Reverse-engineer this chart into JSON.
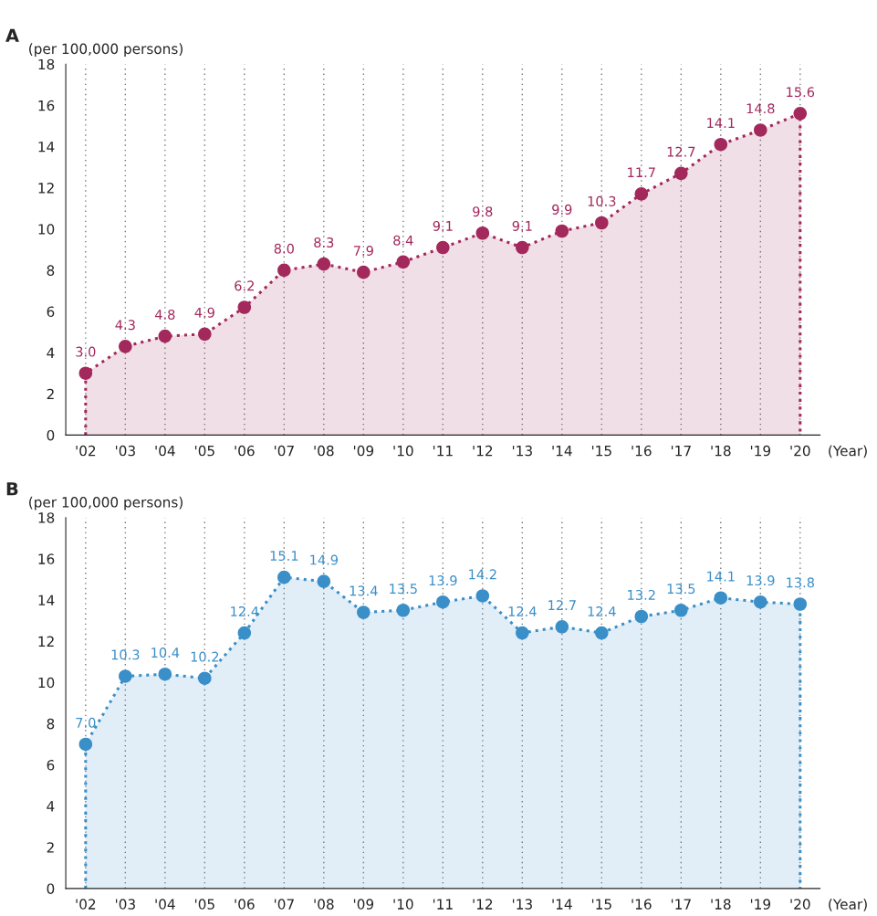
{
  "chart_data": [
    {
      "type": "area",
      "title": "A",
      "ylabel": "(per 100,000 persons)",
      "xlabel": "(Year)",
      "categories": [
        "'02",
        "'03",
        "'04",
        "'05",
        "'06",
        "'07",
        "'08",
        "'09",
        "'10",
        "'11",
        "'12",
        "'13",
        "'14",
        "'15",
        "'16",
        "'17",
        "'18",
        "'19",
        "'20"
      ],
      "series": [
        {
          "color": "#a3285c",
          "values": [
            3.0,
            4.3,
            4.8,
            4.9,
            6.2,
            8.0,
            8.3,
            7.9,
            8.4,
            9.1,
            9.8,
            9.1,
            9.9,
            10.3,
            11.7,
            12.7,
            14.1,
            14.8,
            15.6
          ],
          "value_labels": [
            "3.0",
            "4.3",
            "4.8",
            "4.9",
            "6.2",
            "8.0",
            "8.3",
            "7.9",
            "8.4",
            "9.1",
            "9.8",
            "9.1",
            "9.9",
            "10.3",
            "11.7",
            "12.7",
            "14.1",
            "14.8",
            "15.6"
          ]
        }
      ],
      "ylim": [
        0,
        18
      ],
      "yticks": [
        0,
        2,
        4,
        6,
        8,
        10,
        12,
        14,
        16,
        18
      ],
      "grid": "x",
      "marker": "circle",
      "line_style": "dotted"
    },
    {
      "type": "area",
      "title": "B",
      "ylabel": "(per 100,000 persons)",
      "xlabel": "(Year)",
      "categories": [
        "'02",
        "'03",
        "'04",
        "'05",
        "'06",
        "'07",
        "'08",
        "'09",
        "'10",
        "'11",
        "'12",
        "'13",
        "'14",
        "'15",
        "'16",
        "'17",
        "'18",
        "'19",
        "'20"
      ],
      "series": [
        {
          "color": "#3a8fc8",
          "values": [
            7.0,
            10.3,
            10.4,
            10.2,
            12.4,
            15.1,
            14.9,
            13.4,
            13.5,
            13.9,
            14.2,
            12.4,
            12.7,
            12.4,
            13.2,
            13.5,
            14.1,
            13.9,
            13.8
          ],
          "value_labels": [
            "7.0",
            "10.3",
            "10.4",
            "10.2",
            "12.4",
            "15.1",
            "14.9",
            "13.4",
            "13.5",
            "13.9",
            "14.2",
            "12.4",
            "12.7",
            "12.4",
            "13.2",
            "13.5",
            "14.1",
            "13.9",
            "13.8"
          ]
        }
      ],
      "ylim": [
        0,
        18
      ],
      "yticks": [
        0,
        2,
        4,
        6,
        8,
        10,
        12,
        14,
        16,
        18
      ],
      "grid": "x",
      "marker": "circle",
      "line_style": "dotted"
    }
  ]
}
